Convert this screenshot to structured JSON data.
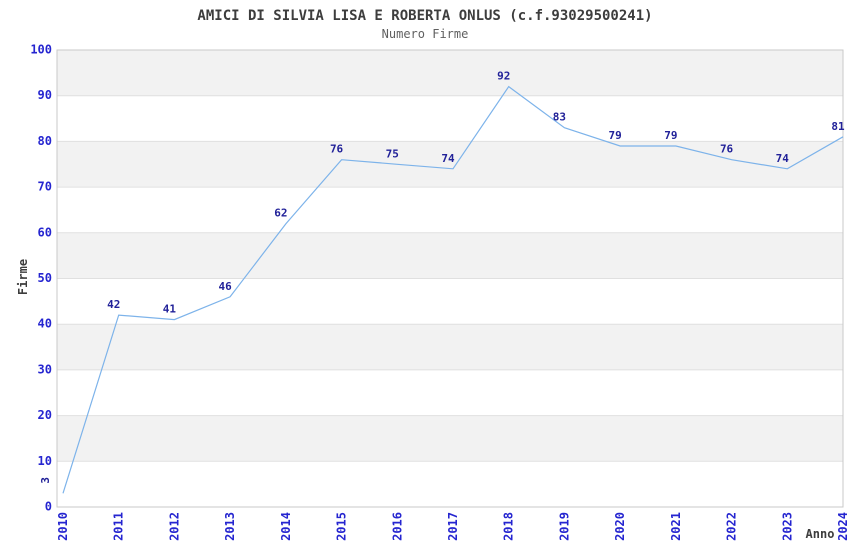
{
  "chart_data": {
    "type": "line",
    "title": "AMICI DI SILVIA LISA E ROBERTA ONLUS (c.f.93029500241)",
    "subtitle": "Numero Firme",
    "xlabel": "Anno",
    "ylabel": "Firme",
    "x": [
      2010,
      2011,
      2012,
      2013,
      2014,
      2015,
      2016,
      2017,
      2018,
      2019,
      2020,
      2021,
      2022,
      2023,
      2024
    ],
    "values": [
      3,
      42,
      41,
      46,
      62,
      76,
      75,
      74,
      92,
      83,
      79,
      79,
      76,
      74,
      81
    ],
    "ylim": [
      0,
      100
    ],
    "ytick_step": 10,
    "grid": true,
    "legend": "none",
    "band_fill_odd": "#f2f2f2",
    "band_fill_even": "#ffffff",
    "colors": {
      "line": "#7db3ea",
      "tick_label": "#2525d0",
      "value_label": "#222299",
      "title": "#3d3d3d",
      "subtitle": "#606060",
      "axis_title": "#3d3d3d",
      "gridline": "#e0e0e0",
      "plot_border": "#c9c9c9"
    }
  }
}
